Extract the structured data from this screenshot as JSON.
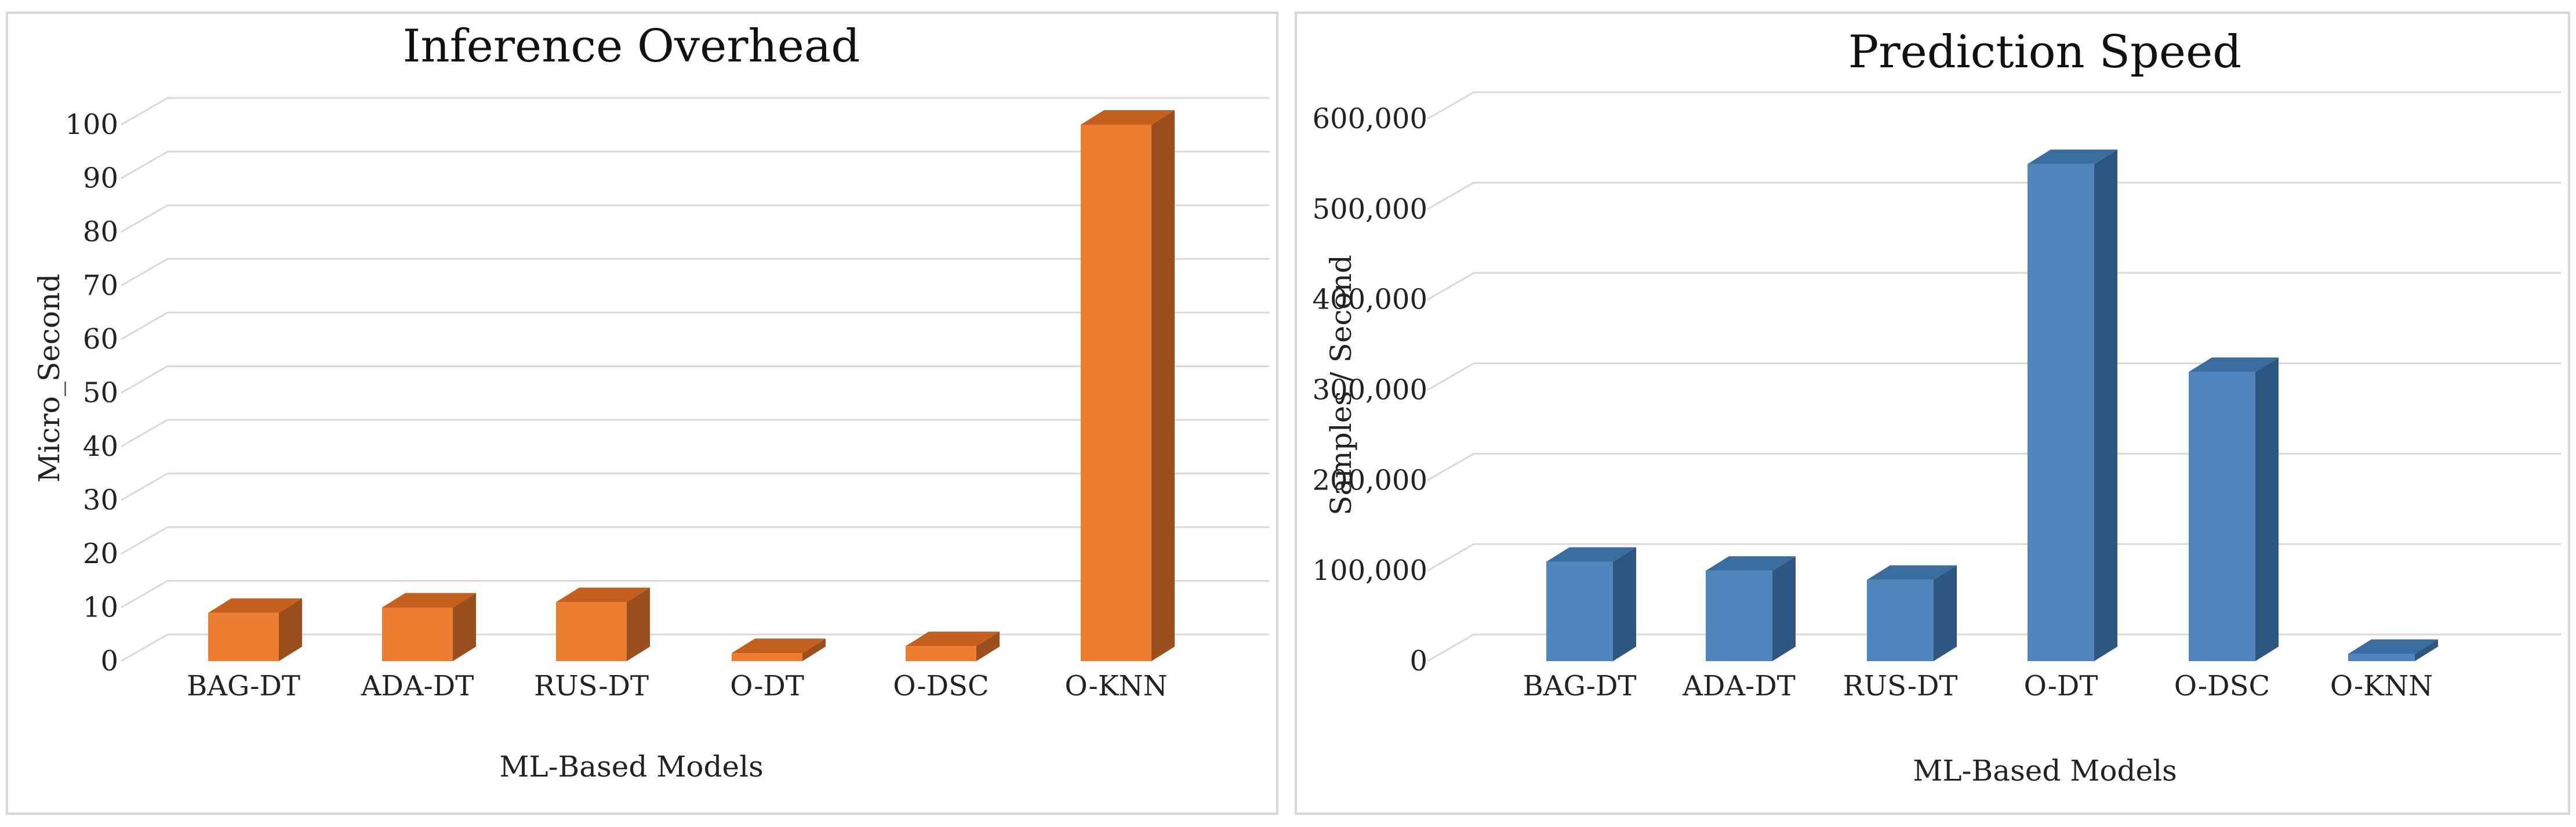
{
  "chart_data": [
    {
      "type": "bar",
      "title": "Inference Overhead",
      "xlabel": "ML-Based Models",
      "ylabel": "Micro_Second",
      "categories": [
        "BAG-DT",
        "ADA-DT",
        "RUS-DT",
        "O-DT",
        "O-DSC",
        "O-KNN"
      ],
      "values": [
        9,
        10,
        11,
        1.5,
        2.8,
        100
      ],
      "ylim": [
        0,
        100
      ],
      "yticks": [
        0,
        10,
        20,
        30,
        40,
        50,
        60,
        70,
        80,
        90,
        100
      ],
      "ytick_labels": [
        "0",
        "10",
        "20",
        "30",
        "40",
        "50",
        "60",
        "70",
        "80",
        "90",
        "100"
      ],
      "colors": {
        "front": "#ed7d31",
        "side": "#9c4f1c",
        "top": "#c55f1e"
      },
      "grid": true,
      "legend": "none"
    },
    {
      "type": "bar",
      "title": "Prediction Speed",
      "xlabel": "ML-Based Models",
      "ylabel": "Samples / Second",
      "categories": [
        "BAG-DT",
        "ADA-DT",
        "RUS-DT",
        "O-DT",
        "O-DSC",
        "O-KNN"
      ],
      "values": [
        110000,
        100000,
        90000,
        550000,
        320000,
        8000
      ],
      "ylim": [
        0,
        600000
      ],
      "yticks": [
        0,
        100000,
        200000,
        300000,
        400000,
        500000,
        600000
      ],
      "ytick_labels": [
        "0",
        "100,000",
        "200,000",
        "300,000",
        "400,000",
        "500,000",
        "600,000"
      ],
      "colors": {
        "front": "#4f86be",
        "side": "#2d5780",
        "top": "#3a6d9f"
      },
      "grid": true,
      "legend": "none"
    }
  ]
}
